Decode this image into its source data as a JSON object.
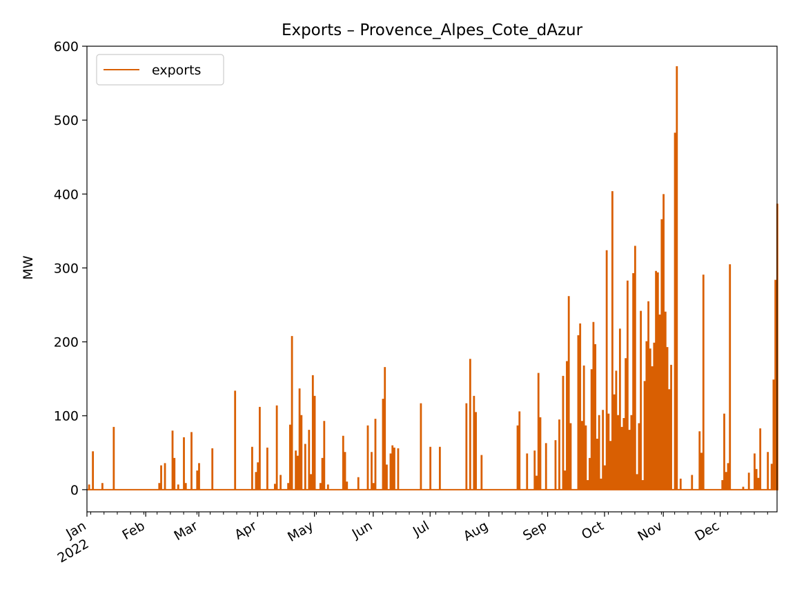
{
  "chart_data": {
    "type": "line",
    "title": "Exports – Provence_Alpes_Cote_dAzur",
    "xlabel": "",
    "ylabel": "MW",
    "ylim": [
      -30,
      600
    ],
    "yticks": [
      0,
      100,
      200,
      300,
      400,
      500,
      600
    ],
    "xlim": [
      "2022-01-01",
      "2022-12-31"
    ],
    "xticks": [
      {
        "date": "2022-01-01",
        "label": "Jan",
        "sublabel": "2022"
      },
      {
        "date": "2022-02-01",
        "label": "Feb",
        "sublabel": ""
      },
      {
        "date": "2022-03-01",
        "label": "Mar",
        "sublabel": ""
      },
      {
        "date": "2022-04-01",
        "label": "Apr",
        "sublabel": ""
      },
      {
        "date": "2022-05-01",
        "label": "May",
        "sublabel": ""
      },
      {
        "date": "2022-06-01",
        "label": "Jun",
        "sublabel": ""
      },
      {
        "date": "2022-07-01",
        "label": "Jul",
        "sublabel": ""
      },
      {
        "date": "2022-08-01",
        "label": "Aug",
        "sublabel": ""
      },
      {
        "date": "2022-09-01",
        "label": "Sep",
        "sublabel": ""
      },
      {
        "date": "2022-10-01",
        "label": "Oct",
        "sublabel": ""
      },
      {
        "date": "2022-11-01",
        "label": "Nov",
        "sublabel": ""
      },
      {
        "date": "2022-12-01",
        "label": "Dec",
        "sublabel": ""
      }
    ],
    "grid": false,
    "legend": "top-left",
    "series": [
      {
        "name": "exports",
        "color": "#d95f02",
        "baseline": 0,
        "spikes": [
          [
            "2022-01-02",
            6
          ],
          [
            "2022-01-04",
            51
          ],
          [
            "2022-01-09",
            8
          ],
          [
            "2022-01-15",
            84
          ],
          [
            "2022-02-08",
            8
          ],
          [
            "2022-02-09",
            32
          ],
          [
            "2022-02-11",
            35
          ],
          [
            "2022-02-15",
            79
          ],
          [
            "2022-02-16",
            42
          ],
          [
            "2022-02-18",
            6
          ],
          [
            "2022-02-21",
            70
          ],
          [
            "2022-02-22",
            8
          ],
          [
            "2022-02-25",
            77
          ],
          [
            "2022-02-28",
            25
          ],
          [
            "2022-03-01",
            35
          ],
          [
            "2022-03-08",
            55
          ],
          [
            "2022-03-20",
            133
          ],
          [
            "2022-03-29",
            57
          ],
          [
            "2022-03-31",
            23
          ],
          [
            "2022-04-01",
            36
          ],
          [
            "2022-04-02",
            111
          ],
          [
            "2022-04-06",
            56
          ],
          [
            "2022-04-10",
            7
          ],
          [
            "2022-04-11",
            113
          ],
          [
            "2022-04-13",
            19
          ],
          [
            "2022-04-17",
            8
          ],
          [
            "2022-04-18",
            87
          ],
          [
            "2022-04-19",
            207
          ],
          [
            "2022-04-21",
            52
          ],
          [
            "2022-04-22",
            45
          ],
          [
            "2022-04-23",
            136
          ],
          [
            "2022-04-24",
            100
          ],
          [
            "2022-04-26",
            61
          ],
          [
            "2022-04-28",
            80
          ],
          [
            "2022-04-29",
            20
          ],
          [
            "2022-04-30",
            154
          ],
          [
            "2022-05-01",
            126
          ],
          [
            "2022-05-04",
            8
          ],
          [
            "2022-05-05",
            42
          ],
          [
            "2022-05-06",
            92
          ],
          [
            "2022-05-08",
            6
          ],
          [
            "2022-05-16",
            72
          ],
          [
            "2022-05-17",
            50
          ],
          [
            "2022-05-18",
            10
          ],
          [
            "2022-05-24",
            16
          ],
          [
            "2022-05-29",
            86
          ],
          [
            "2022-05-31",
            50
          ],
          [
            "2022-06-01",
            8
          ],
          [
            "2022-06-02",
            95
          ],
          [
            "2022-06-06",
            122
          ],
          [
            "2022-06-07",
            165
          ],
          [
            "2022-06-08",
            33
          ],
          [
            "2022-06-10",
            48
          ],
          [
            "2022-06-11",
            59
          ],
          [
            "2022-06-12",
            56
          ],
          [
            "2022-06-14",
            55
          ],
          [
            "2022-06-26",
            116
          ],
          [
            "2022-07-01",
            57
          ],
          [
            "2022-07-06",
            57
          ],
          [
            "2022-07-20",
            116
          ],
          [
            "2022-07-22",
            176
          ],
          [
            "2022-07-24",
            126
          ],
          [
            "2022-07-25",
            104
          ],
          [
            "2022-07-28",
            46
          ],
          [
            "2022-08-16",
            86
          ],
          [
            "2022-08-17",
            105
          ],
          [
            "2022-08-21",
            48
          ],
          [
            "2022-08-25",
            52
          ],
          [
            "2022-08-26",
            18
          ],
          [
            "2022-08-27",
            157
          ],
          [
            "2022-08-28",
            97
          ],
          [
            "2022-08-31",
            62
          ],
          [
            "2022-09-05",
            66
          ],
          [
            "2022-09-07",
            94
          ],
          [
            "2022-09-09",
            153
          ],
          [
            "2022-09-10",
            25
          ],
          [
            "2022-09-11",
            173
          ],
          [
            "2022-09-12",
            261
          ],
          [
            "2022-09-13",
            89
          ],
          [
            "2022-09-17",
            208
          ],
          [
            "2022-09-18",
            224
          ],
          [
            "2022-09-19",
            92
          ],
          [
            "2022-09-20",
            167
          ],
          [
            "2022-09-21",
            86
          ],
          [
            "2022-09-22",
            12
          ],
          [
            "2022-09-23",
            42
          ],
          [
            "2022-09-24",
            162
          ],
          [
            "2022-09-25",
            226
          ],
          [
            "2022-09-26",
            196
          ],
          [
            "2022-09-27",
            68
          ],
          [
            "2022-09-28",
            100
          ],
          [
            "2022-09-29",
            14
          ],
          [
            "2022-09-30",
            107
          ],
          [
            "2022-10-01",
            32
          ],
          [
            "2022-10-02",
            323
          ],
          [
            "2022-10-03",
            102
          ],
          [
            "2022-10-04",
            65
          ],
          [
            "2022-10-05",
            403
          ],
          [
            "2022-10-06",
            128
          ],
          [
            "2022-10-07",
            160
          ],
          [
            "2022-10-08",
            100
          ],
          [
            "2022-10-09",
            217
          ],
          [
            "2022-10-10",
            84
          ],
          [
            "2022-10-11",
            96
          ],
          [
            "2022-10-12",
            177
          ],
          [
            "2022-10-13",
            282
          ],
          [
            "2022-10-14",
            80
          ],
          [
            "2022-10-15",
            100
          ],
          [
            "2022-10-16",
            292
          ],
          [
            "2022-10-17",
            329
          ],
          [
            "2022-10-18",
            20
          ],
          [
            "2022-10-19",
            89
          ],
          [
            "2022-10-20",
            241
          ],
          [
            "2022-10-21",
            12
          ],
          [
            "2022-10-22",
            146
          ],
          [
            "2022-10-23",
            200
          ],
          [
            "2022-10-24",
            254
          ],
          [
            "2022-10-25",
            190
          ],
          [
            "2022-10-26",
            166
          ],
          [
            "2022-10-27",
            198
          ],
          [
            "2022-10-28",
            295
          ],
          [
            "2022-10-29",
            293
          ],
          [
            "2022-10-30",
            236
          ],
          [
            "2022-10-31",
            365
          ],
          [
            "2022-11-01",
            399
          ],
          [
            "2022-11-02",
            240
          ],
          [
            "2022-11-03",
            192
          ],
          [
            "2022-11-04",
            135
          ],
          [
            "2022-11-05",
            168
          ],
          [
            "2022-11-07",
            482
          ],
          [
            "2022-11-08",
            572
          ],
          [
            "2022-11-10",
            14
          ],
          [
            "2022-11-16",
            19
          ],
          [
            "2022-11-20",
            78
          ],
          [
            "2022-11-21",
            49
          ],
          [
            "2022-11-22",
            290
          ],
          [
            "2022-12-02",
            12
          ],
          [
            "2022-12-03",
            102
          ],
          [
            "2022-12-04",
            23
          ],
          [
            "2022-12-05",
            35
          ],
          [
            "2022-12-06",
            304
          ],
          [
            "2022-12-13",
            3
          ],
          [
            "2022-12-16",
            22
          ],
          [
            "2022-12-19",
            48
          ],
          [
            "2022-12-20",
            27
          ],
          [
            "2022-12-21",
            15
          ],
          [
            "2022-12-22",
            82
          ],
          [
            "2022-12-26",
            50
          ],
          [
            "2022-12-28",
            34
          ],
          [
            "2022-12-29",
            148
          ],
          [
            "2022-12-30",
            283
          ],
          [
            "2022-12-31",
            386
          ]
        ]
      }
    ]
  }
}
